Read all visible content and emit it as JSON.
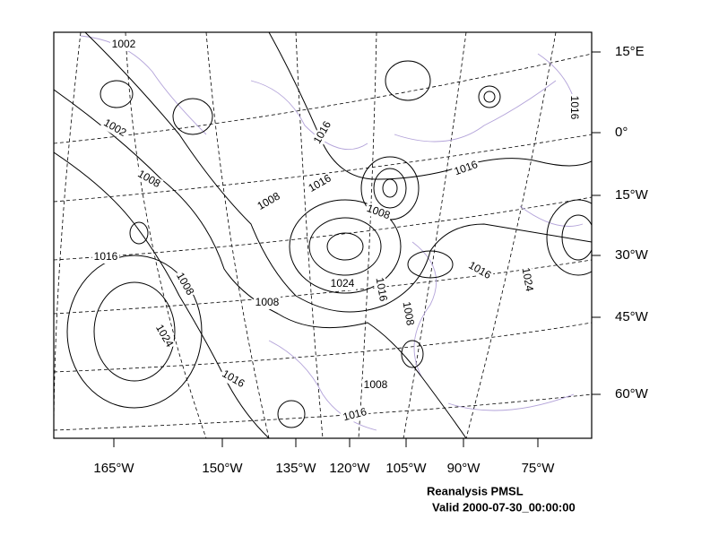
{
  "map": {
    "contour_labels": [
      "1002",
      "1016",
      "1002",
      "1016",
      "1008",
      "1016",
      "1016",
      "1008",
      "1008",
      "1016",
      "1016",
      "1024",
      "1008",
      "1024",
      "1016",
      "1008",
      "1008",
      "1024",
      "1016",
      "1008",
      "1016"
    ],
    "longitude_labels": [
      "165°W",
      "150°W",
      "135°W",
      "120°W",
      "105°W",
      "90°W",
      "75°W"
    ],
    "latitude_labels": [
      "15°E",
      "0°",
      "15°W",
      "30°W",
      "45°W",
      "60°W"
    ],
    "caption": {
      "title": "Reanalysis PMSL",
      "valid": "Valid 2000-07-30_00:00:00"
    }
  }
}
